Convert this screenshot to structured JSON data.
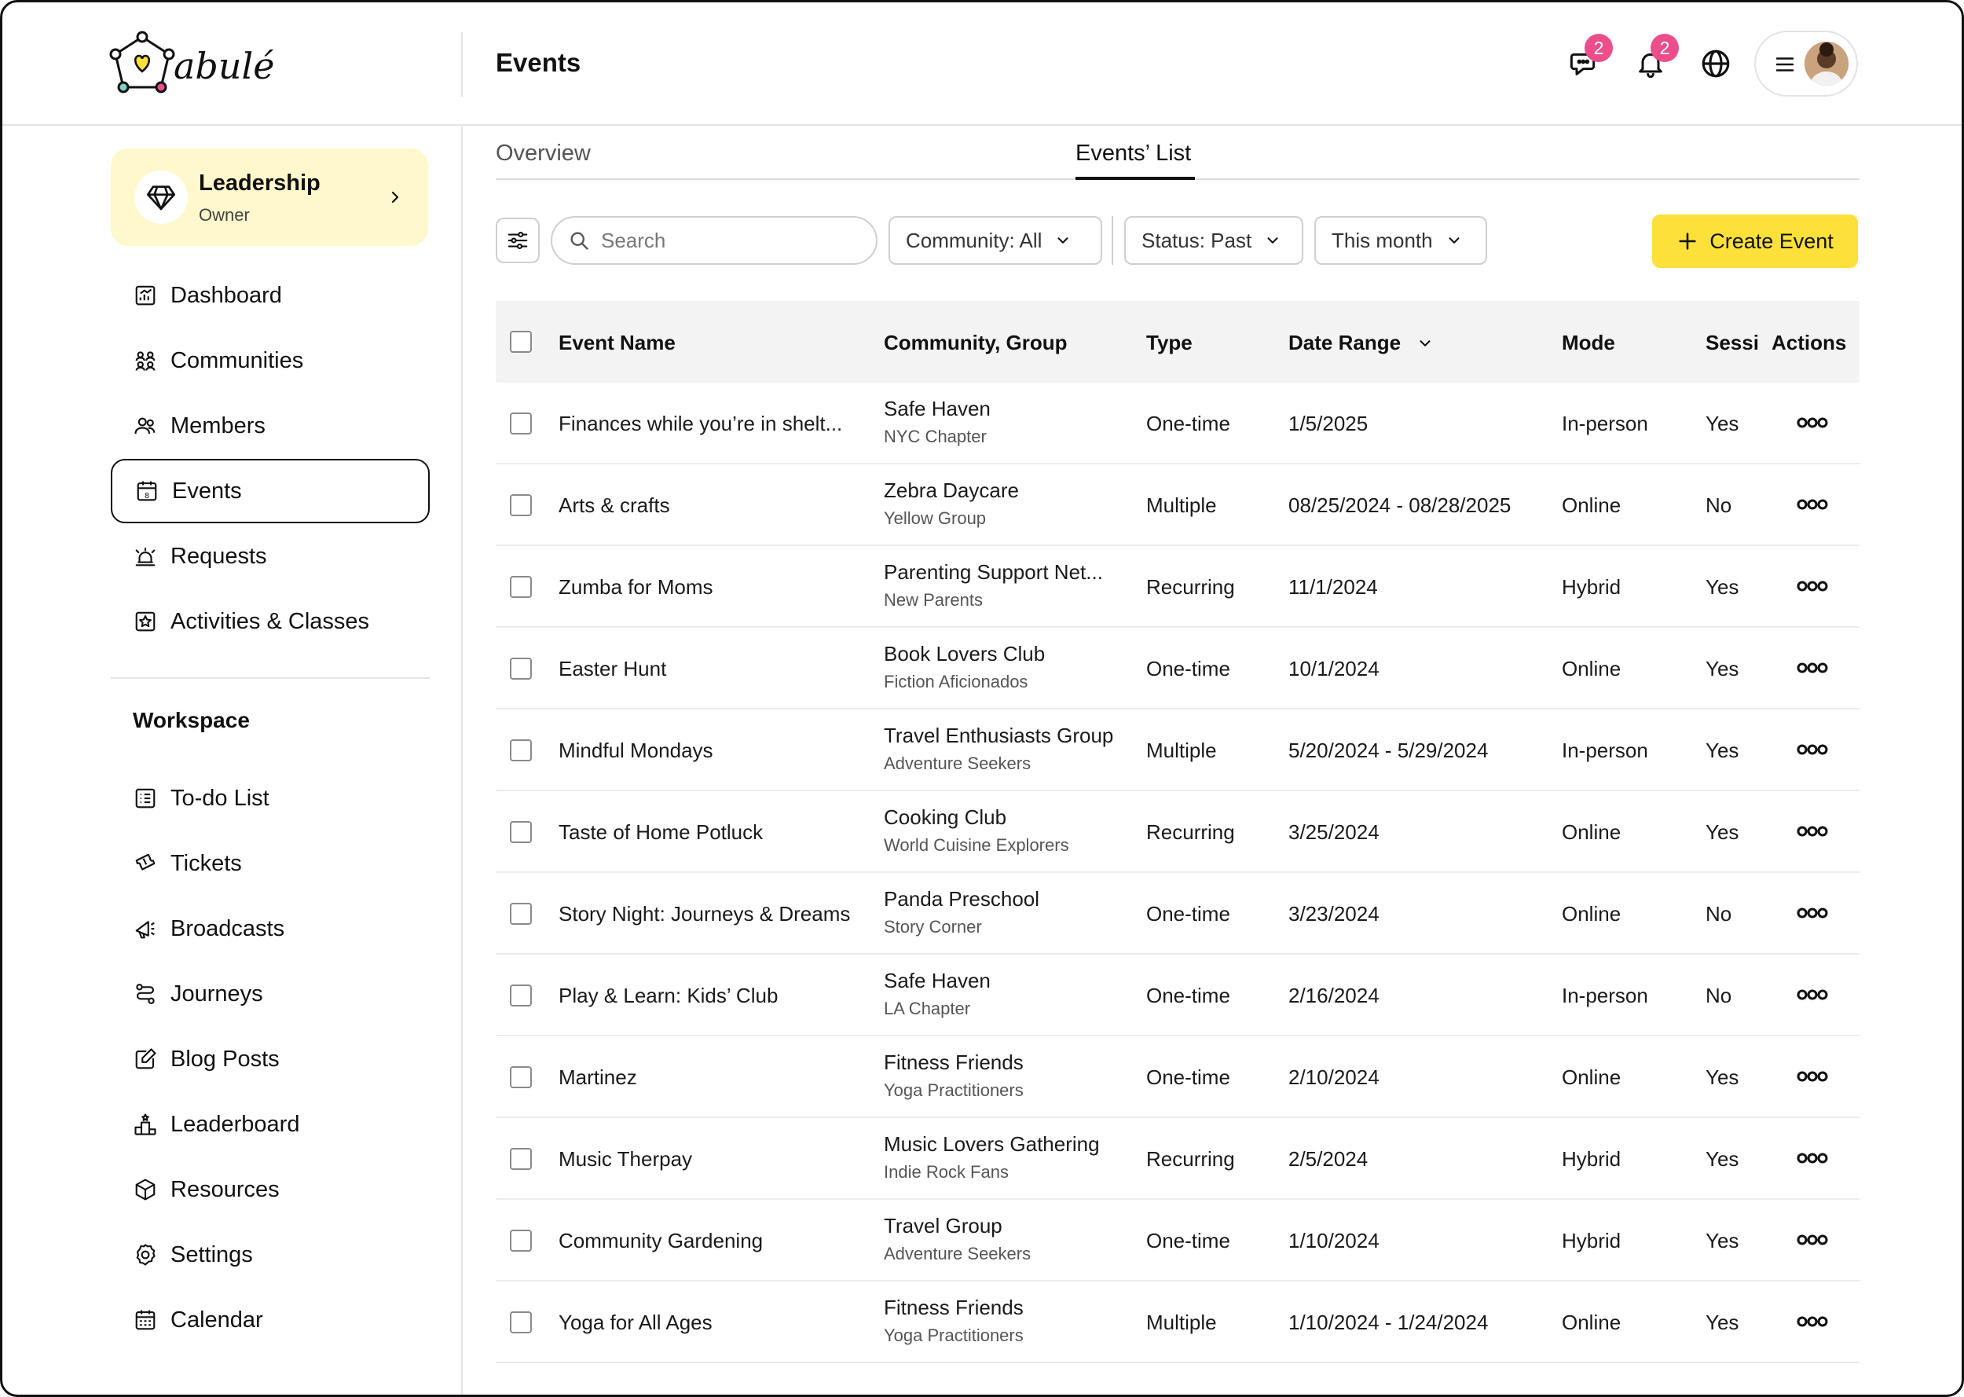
{
  "app": {
    "logo_text": "abulé",
    "page_title": "Events"
  },
  "header": {
    "messages_count": "2",
    "notifications_count": "2",
    "colors": {
      "badge": "#ec4e8c",
      "accent": "#fde03a",
      "role_card": "#fff8cc"
    }
  },
  "sidebar": {
    "role": {
      "title": "Leadership",
      "subtitle": "Owner"
    },
    "items": [
      {
        "label": "Dashboard",
        "icon": "chart-icon"
      },
      {
        "label": "Communities",
        "icon": "people-group-icon"
      },
      {
        "label": "Members",
        "icon": "members-icon"
      },
      {
        "label": "Events",
        "icon": "calendar-icon",
        "active": true
      },
      {
        "label": "Requests",
        "icon": "bell-ring-icon"
      },
      {
        "label": "Activities & Classes",
        "icon": "star-icon"
      }
    ],
    "workspace_title": "Workspace",
    "workspace_items": [
      {
        "label": "To-do List",
        "icon": "list-icon"
      },
      {
        "label": "Tickets",
        "icon": "ticket-icon"
      },
      {
        "label": "Broadcasts",
        "icon": "megaphone-icon"
      },
      {
        "label": "Journeys",
        "icon": "route-icon"
      },
      {
        "label": "Blog Posts",
        "icon": "edit-icon"
      },
      {
        "label": "Leaderboard",
        "icon": "podium-icon"
      },
      {
        "label": "Resources",
        "icon": "box-icon"
      },
      {
        "label": "Settings",
        "icon": "gear-icon"
      },
      {
        "label": "Calendar",
        "icon": "calendar-grid-icon"
      }
    ]
  },
  "tabs": {
    "overview": "Overview",
    "list": "Events’ List"
  },
  "toolbar": {
    "search_placeholder": "Search",
    "community_filter": "Community: All",
    "status_filter": "Status: Past",
    "date_filter": "This month",
    "create_label": "Create Event"
  },
  "table": {
    "columns": {
      "name": "Event Name",
      "community": "Community, Group",
      "type": "Type",
      "date": "Date Range",
      "mode": "Mode",
      "session": "Sessi",
      "actions": "Actions"
    },
    "rows": [
      {
        "name": "Finances while you’re in shelt...",
        "community": "Safe Haven",
        "group": "NYC Chapter",
        "type": "One-time",
        "date": "1/5/2025",
        "mode": "In-person",
        "session": "Yes"
      },
      {
        "name": "Arts & crafts",
        "community": "Zebra Daycare",
        "group": "Yellow Group",
        "type": "Multiple",
        "date": "08/25/2024 - 08/28/2025",
        "mode": "Online",
        "session": "No"
      },
      {
        "name": "Zumba for Moms",
        "community": "Parenting Support Net...",
        "group": "New Parents",
        "type": "Recurring",
        "date": "11/1/2024",
        "mode": "Hybrid",
        "session": "Yes"
      },
      {
        "name": "Easter Hunt",
        "community": "Book Lovers Club",
        "group": "Fiction Aficionados",
        "type": "One-time",
        "date": "10/1/2024",
        "mode": "Online",
        "session": "Yes"
      },
      {
        "name": "Mindful Mondays",
        "community": "Travel Enthusiasts Group",
        "group": "Adventure Seekers",
        "type": "Multiple",
        "date": "5/20/2024 - 5/29/2024",
        "mode": "In-person",
        "session": "Yes"
      },
      {
        "name": "Taste of Home Potluck",
        "community": "Cooking Club",
        "group": "World Cuisine Explorers",
        "type": "Recurring",
        "date": "3/25/2024",
        "mode": "Online",
        "session": "Yes"
      },
      {
        "name": "Story Night: Journeys & Dreams",
        "community": "Panda Preschool",
        "group": "Story Corner",
        "type": "One-time",
        "date": "3/23/2024",
        "mode": "Online",
        "session": "No"
      },
      {
        "name": "Play & Learn: Kids’ Club",
        "community": "Safe Haven",
        "group": "LA Chapter",
        "type": "One-time",
        "date": "2/16/2024",
        "mode": "In-person",
        "session": "No"
      },
      {
        "name": "Martinez",
        "community": "Fitness Friends",
        "group": "Yoga Practitioners",
        "type": "One-time",
        "date": "2/10/2024",
        "mode": "Online",
        "session": "Yes"
      },
      {
        "name": "Music Therpay",
        "community": "Music Lovers Gathering",
        "group": "Indie Rock Fans",
        "type": "Recurring",
        "date": "2/5/2024",
        "mode": "Hybrid",
        "session": "Yes"
      },
      {
        "name": "Community Gardening",
        "community": "Travel Group",
        "group": "Adventure Seekers",
        "type": "One-time",
        "date": "1/10/2024",
        "mode": "Hybrid",
        "session": "Yes"
      },
      {
        "name": "Yoga for All Ages",
        "community": "Fitness Friends",
        "group": "Yoga Practitioners",
        "type": "Multiple",
        "date": "1/10/2024 - 1/24/2024",
        "mode": "Online",
        "session": "Yes"
      }
    ]
  }
}
